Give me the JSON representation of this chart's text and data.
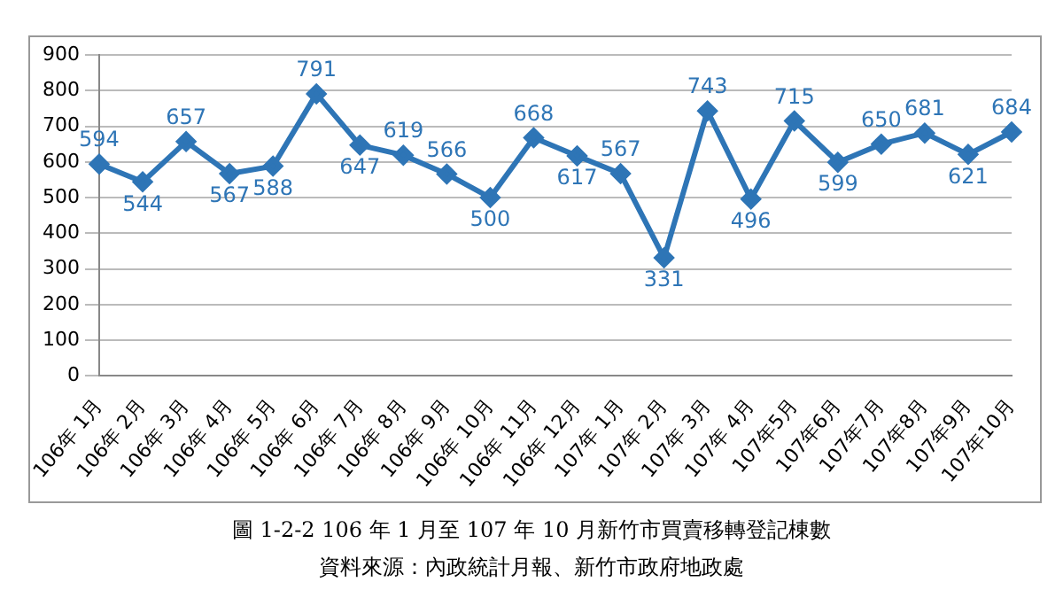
{
  "chart_data": {
    "type": "line",
    "title": "圖 1-2-2 106 年 1 月至 107 年 10 月新竹市買賣移轉登記棟數",
    "annotations": [
      "資料來源：內政統計月報、新竹市政府地政處"
    ],
    "categories": [
      "106年 1月",
      "106年 2月",
      "106年 3月",
      "106年 4月",
      "106年 5月",
      "106年 6月",
      "106年 7月",
      "106年 8月",
      "106年 9月",
      "106年 10月",
      "106年 11月",
      "106年 12月",
      "107年 1月",
      "107年 2月",
      "107年 3月",
      "107年 4月",
      "107年5月",
      "107年6月",
      "107年7月",
      "107年8月",
      "107年9月",
      "107年10月"
    ],
    "series": [
      {
        "color": "#2e75b6",
        "values": [
          594,
          544,
          657,
          567,
          588,
          791,
          647,
          619,
          566,
          500,
          668,
          617,
          567,
          331,
          743,
          496,
          715,
          599,
          650,
          681,
          621,
          684
        ]
      }
    ],
    "ylim": [
      0,
      900
    ],
    "yticks": [
      0,
      100,
      200,
      300,
      400,
      500,
      600,
      700,
      800,
      900
    ],
    "grid": "y",
    "legend": false,
    "marker": "diamond",
    "line_style": "solid",
    "data_labels": true
  }
}
